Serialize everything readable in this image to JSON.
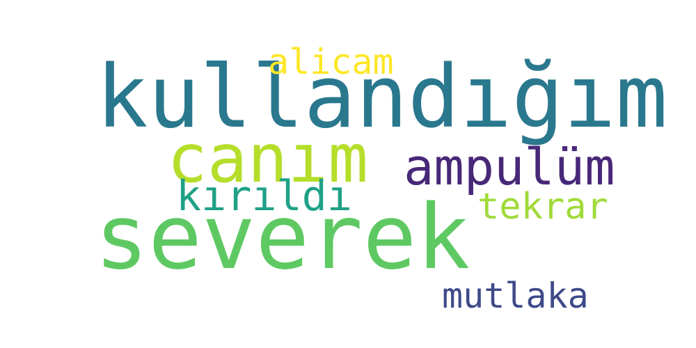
{
  "word_cloud": {
    "background": "#ffffff",
    "words": [
      {
        "text": "kullandığım",
        "color": "#2a788e"
      },
      {
        "text": "severek",
        "color": "#5ec962"
      },
      {
        "text": "canım",
        "color": "#b5de2b"
      },
      {
        "text": "ampulüm",
        "color": "#482878"
      },
      {
        "text": "kırıldı",
        "color": "#1fa187"
      },
      {
        "text": "tekrar",
        "color": "#a0da39"
      },
      {
        "text": "alicam",
        "color": "#fde725"
      },
      {
        "text": "mutlaka",
        "color": "#3e4a89"
      }
    ]
  }
}
